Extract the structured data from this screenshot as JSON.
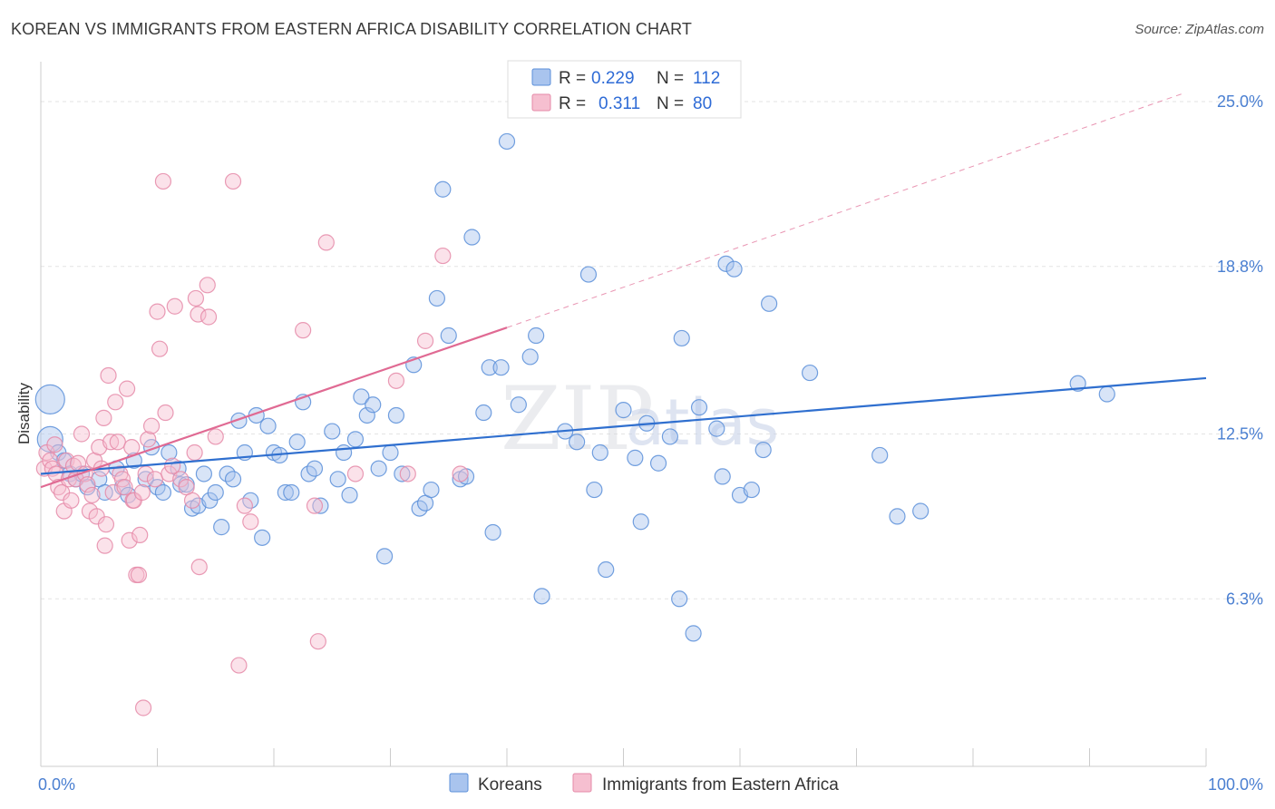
{
  "title": "KOREAN VS IMMIGRANTS FROM EASTERN AFRICA DISABILITY CORRELATION CHART",
  "source": "Source: ZipAtlas.com",
  "colors": {
    "blue": "#5b8fd9",
    "blue_fill": "#a9c4ee",
    "blue_line": "#2f6fcf",
    "pink": "#e58aa8",
    "pink_fill": "#f6bfd0",
    "pink_line": "#e06a93",
    "grid": "#e3e3e3",
    "tick_text": "#4a7fd1"
  },
  "legend": {
    "row1": {
      "r_label": "R =",
      "r_value": "0.229",
      "n_label": "N =",
      "n_value": "112"
    },
    "row2": {
      "r_label": "R =",
      "r_value": "0.311",
      "n_label": "N =",
      "n_value": "80"
    }
  },
  "bottom_legend": {
    "series1": "Koreans",
    "series2": "Immigrants from Eastern Africa"
  },
  "watermark": {
    "part1": "ZIP",
    "part2": "atlas"
  },
  "chart_data": {
    "type": "scatter",
    "title": "KOREAN VS IMMIGRANTS FROM EASTERN AFRICA DISABILITY CORRELATION CHART",
    "xlabel": "",
    "ylabel": "Disability",
    "xlim": [
      0,
      100
    ],
    "ylim": [
      0,
      26.5
    ],
    "x_tick_labels": [
      "0.0%",
      "100.0%"
    ],
    "y_ticks": [
      6.3,
      12.5,
      18.8,
      25.0
    ],
    "y_tick_labels": [
      "6.3%",
      "12.5%",
      "18.8%",
      "25.0%"
    ],
    "grid": "horizontal dashed",
    "legend_position": "top-center",
    "series": [
      {
        "name": "Koreans",
        "r": 0.229,
        "n": 112,
        "trend": {
          "x0": 0,
          "y0": 11.0,
          "x1": 100,
          "y1": 14.6
        },
        "points": [
          [
            0.8,
            13.8
          ],
          [
            0.8,
            12.3
          ],
          [
            1.5,
            11.8
          ],
          [
            2.0,
            11.5
          ],
          [
            2.5,
            11.0
          ],
          [
            3.0,
            10.8
          ],
          [
            3.5,
            11.0
          ],
          [
            4.0,
            10.5
          ],
          [
            5.0,
            10.8
          ],
          [
            5.5,
            10.3
          ],
          [
            6.5,
            11.2
          ],
          [
            7.0,
            10.5
          ],
          [
            7.5,
            10.2
          ],
          [
            8.0,
            11.5
          ],
          [
            9.0,
            10.8
          ],
          [
            9.5,
            12.0
          ],
          [
            10.0,
            10.5
          ],
          [
            10.5,
            10.3
          ],
          [
            11.0,
            11.8
          ],
          [
            11.8,
            11.2
          ],
          [
            12.0,
            10.6
          ],
          [
            12.5,
            10.6
          ],
          [
            13.0,
            9.7
          ],
          [
            13.5,
            9.8
          ],
          [
            14.0,
            11.0
          ],
          [
            14.5,
            10.0
          ],
          [
            15.0,
            10.3
          ],
          [
            15.5,
            9.0
          ],
          [
            16.0,
            11.0
          ],
          [
            16.5,
            10.8
          ],
          [
            17.0,
            13.0
          ],
          [
            17.5,
            11.8
          ],
          [
            18.0,
            10.0
          ],
          [
            18.5,
            13.2
          ],
          [
            19.0,
            8.6
          ],
          [
            19.5,
            12.8
          ],
          [
            20.0,
            11.8
          ],
          [
            20.5,
            11.7
          ],
          [
            21.0,
            10.3
          ],
          [
            21.5,
            10.3
          ],
          [
            22.0,
            12.2
          ],
          [
            22.5,
            13.7
          ],
          [
            23.0,
            11.0
          ],
          [
            23.5,
            11.2
          ],
          [
            24.0,
            9.8
          ],
          [
            25.0,
            12.6
          ],
          [
            25.5,
            10.8
          ],
          [
            26.0,
            11.8
          ],
          [
            26.5,
            10.2
          ],
          [
            27.0,
            12.3
          ],
          [
            27.5,
            13.9
          ],
          [
            28.0,
            13.2
          ],
          [
            28.5,
            13.6
          ],
          [
            29.0,
            11.2
          ],
          [
            29.5,
            7.9
          ],
          [
            30.0,
            11.8
          ],
          [
            30.5,
            13.2
          ],
          [
            31.0,
            11.0
          ],
          [
            32.0,
            15.1
          ],
          [
            32.5,
            9.7
          ],
          [
            33.0,
            9.9
          ],
          [
            33.5,
            10.4
          ],
          [
            34.0,
            17.6
          ],
          [
            34.5,
            21.7
          ],
          [
            35.0,
            16.2
          ],
          [
            36.0,
            10.8
          ],
          [
            36.5,
            10.9
          ],
          [
            37.0,
            19.9
          ],
          [
            38.0,
            13.3
          ],
          [
            38.5,
            15.0
          ],
          [
            38.8,
            8.8
          ],
          [
            39.5,
            15.0
          ],
          [
            40.0,
            23.5
          ],
          [
            41.0,
            13.6
          ],
          [
            42.0,
            15.4
          ],
          [
            42.5,
            16.2
          ],
          [
            43.0,
            6.4
          ],
          [
            45.0,
            12.6
          ],
          [
            46.0,
            12.2
          ],
          [
            47.0,
            18.5
          ],
          [
            47.5,
            10.4
          ],
          [
            48.0,
            11.8
          ],
          [
            48.5,
            7.4
          ],
          [
            50.0,
            13.4
          ],
          [
            51.0,
            11.6
          ],
          [
            51.5,
            9.2
          ],
          [
            52.0,
            12.9
          ],
          [
            53.0,
            11.4
          ],
          [
            54.0,
            12.4
          ],
          [
            54.8,
            6.3
          ],
          [
            55.0,
            16.1
          ],
          [
            56.0,
            5.0
          ],
          [
            56.5,
            13.5
          ],
          [
            58.0,
            12.7
          ],
          [
            58.5,
            10.9
          ],
          [
            58.8,
            18.9
          ],
          [
            59.5,
            18.7
          ],
          [
            60.0,
            10.2
          ],
          [
            61.0,
            10.4
          ],
          [
            62.0,
            11.9
          ],
          [
            62.5,
            17.4
          ],
          [
            66.0,
            14.8
          ],
          [
            72.0,
            11.7
          ],
          [
            73.5,
            9.4
          ],
          [
            75.5,
            9.6
          ],
          [
            89.0,
            14.4
          ],
          [
            91.5,
            14.0
          ]
        ]
      },
      {
        "name": "Immigrants from Eastern Africa",
        "r": 0.311,
        "n": 80,
        "trend": {
          "x0": 0,
          "y0": 10.5,
          "x1": 40,
          "y1": 16.5,
          "dashed_x1": 98,
          "dashed_y1": 25.3
        },
        "points": [
          [
            0.3,
            11.2
          ],
          [
            0.5,
            11.8
          ],
          [
            0.8,
            11.5
          ],
          [
            1.0,
            11.2
          ],
          [
            1.2,
            12.1
          ],
          [
            1.3,
            11.0
          ],
          [
            1.5,
            10.5
          ],
          [
            1.8,
            10.3
          ],
          [
            2.0,
            9.6
          ],
          [
            2.2,
            11.5
          ],
          [
            2.4,
            10.8
          ],
          [
            2.6,
            10.0
          ],
          [
            2.8,
            11.3
          ],
          [
            3.0,
            10.8
          ],
          [
            3.2,
            11.4
          ],
          [
            3.5,
            12.5
          ],
          [
            3.8,
            11.0
          ],
          [
            4.0,
            10.6
          ],
          [
            4.2,
            9.6
          ],
          [
            4.4,
            10.2
          ],
          [
            4.6,
            11.5
          ],
          [
            4.8,
            9.4
          ],
          [
            5.0,
            12.0
          ],
          [
            5.2,
            11.2
          ],
          [
            5.4,
            13.1
          ],
          [
            5.5,
            8.3
          ],
          [
            5.6,
            9.1
          ],
          [
            5.8,
            14.7
          ],
          [
            6.0,
            12.2
          ],
          [
            6.2,
            10.3
          ],
          [
            6.4,
            13.7
          ],
          [
            6.6,
            12.2
          ],
          [
            6.8,
            11.0
          ],
          [
            7.0,
            10.8
          ],
          [
            7.2,
            10.5
          ],
          [
            7.4,
            14.2
          ],
          [
            7.6,
            8.5
          ],
          [
            7.8,
            12.0
          ],
          [
            7.9,
            10.0
          ],
          [
            8.0,
            10.0
          ],
          [
            8.2,
            7.2
          ],
          [
            8.4,
            7.2
          ],
          [
            8.5,
            8.7
          ],
          [
            8.7,
            10.3
          ],
          [
            8.8,
            2.2
          ],
          [
            9.0,
            11.0
          ],
          [
            9.2,
            12.3
          ],
          [
            9.5,
            12.8
          ],
          [
            9.8,
            10.8
          ],
          [
            10.0,
            17.1
          ],
          [
            10.2,
            15.7
          ],
          [
            10.5,
            22.0
          ],
          [
            10.7,
            13.3
          ],
          [
            11.0,
            11.0
          ],
          [
            11.3,
            11.3
          ],
          [
            11.5,
            17.3
          ],
          [
            12.0,
            10.8
          ],
          [
            12.5,
            10.5
          ],
          [
            13.0,
            10.0
          ],
          [
            13.2,
            11.8
          ],
          [
            13.3,
            17.6
          ],
          [
            13.5,
            17.0
          ],
          [
            13.6,
            7.5
          ],
          [
            14.3,
            18.1
          ],
          [
            14.4,
            16.9
          ],
          [
            15.0,
            12.4
          ],
          [
            16.5,
            22.0
          ],
          [
            17.0,
            3.8
          ],
          [
            17.5,
            9.8
          ],
          [
            18.0,
            9.2
          ],
          [
            22.5,
            16.4
          ],
          [
            23.5,
            9.8
          ],
          [
            23.8,
            4.7
          ],
          [
            24.5,
            19.7
          ],
          [
            27.0,
            11.0
          ],
          [
            30.5,
            14.5
          ],
          [
            31.5,
            11.0
          ],
          [
            33.0,
            16.0
          ],
          [
            34.5,
            19.2
          ],
          [
            36.0,
            11.0
          ]
        ]
      }
    ]
  }
}
